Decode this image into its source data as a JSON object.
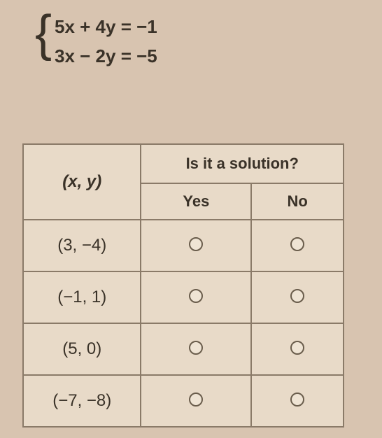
{
  "equations": {
    "line1": "5x + 4y = −1",
    "line2": "3x − 2y = −5"
  },
  "table": {
    "header_xy": "(x, y)",
    "header_question": "Is it a solution?",
    "header_yes": "Yes",
    "header_no": "No",
    "rows": [
      {
        "pair": "(3, −4)"
      },
      {
        "pair": "(−1, 1)"
      },
      {
        "pair": "(5, 0)"
      },
      {
        "pair": "(−7, −8)"
      }
    ]
  },
  "colors": {
    "background": "#d8c4b0",
    "cell_bg": "#e8dac8",
    "border": "#8a7a68",
    "text": "#3a3228"
  }
}
